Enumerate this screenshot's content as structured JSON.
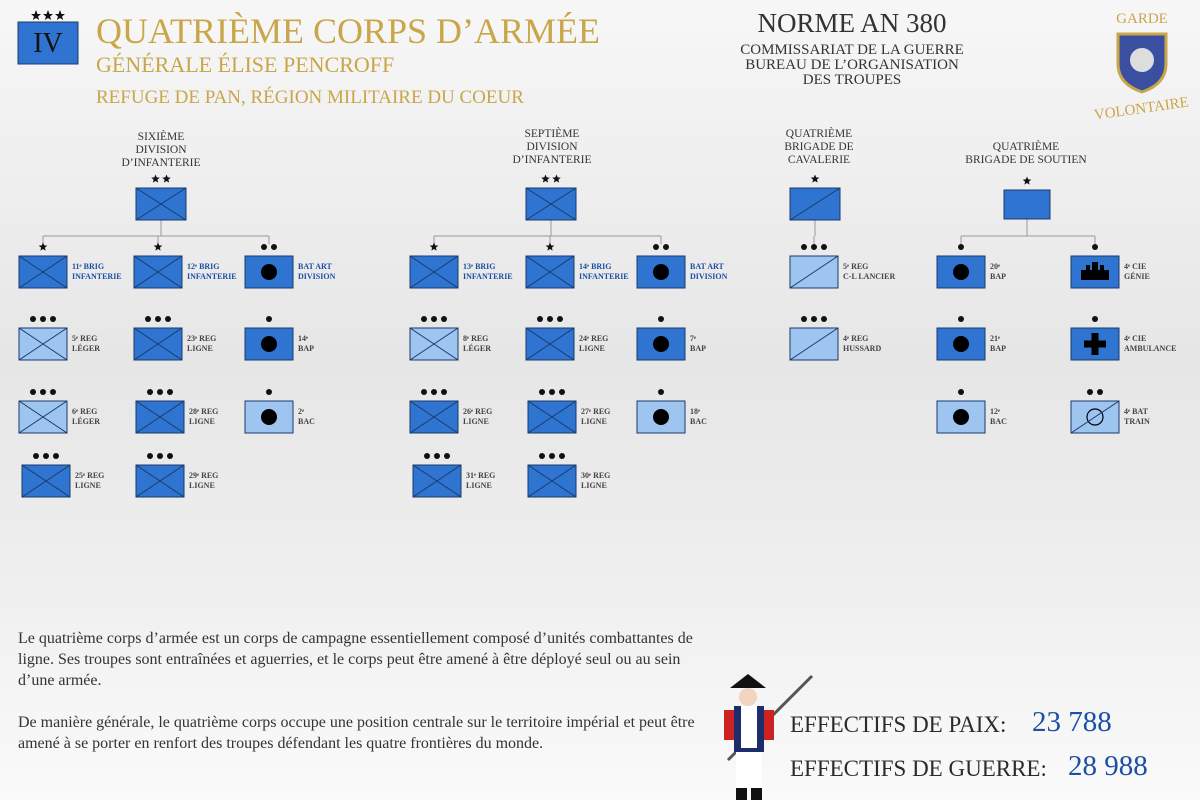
{
  "header": {
    "badge": "IV",
    "title": "QUATRIÈME CORPS D’ARMÉE",
    "commander": "GÉNÉRALE ÉLISE PENCROFF",
    "location": "REFUGE DE PAN, RÉGION MILITAIRE DU COEUR"
  },
  "norm": {
    "title": "NORME AN 380",
    "lines": [
      "COMMISSARIAT DE LA GUERRE",
      "BUREAU DE L’ORGANISATION",
      "DES TROUPES"
    ]
  },
  "logo": {
    "top": "GARDE",
    "bottom": "VOLONTAIRE"
  },
  "formations": [
    {
      "label": [
        "SIXIÈME",
        "DIVISION",
        "D’INFANTERIE"
      ],
      "units": [
        {
          "label": [
            "11ᵉ BRIG",
            "INFANTERIE"
          ]
        },
        {
          "label": [
            "5ᵉ REG",
            "LÉGER"
          ]
        },
        {
          "label": [
            "6ᵉ REG",
            "LÉGER"
          ]
        },
        {
          "label": [
            "25ᵉ REG",
            "LIGNE"
          ]
        },
        {
          "label": [
            "12ᵉ BRIG",
            "INFANTERIE"
          ]
        },
        {
          "label": [
            "23ᵉ REG",
            "LIGNE"
          ]
        },
        {
          "label": [
            "28ᵉ REG",
            "LIGNE"
          ]
        },
        {
          "label": [
            "29ᵉ REG",
            "LIGNE"
          ]
        },
        {
          "label": [
            "BAT ART",
            "DIVISION"
          ]
        },
        {
          "label": [
            "14ᵉ",
            "BAP"
          ]
        },
        {
          "label": [
            "2ᵉ",
            "BAC"
          ]
        }
      ]
    },
    {
      "label": [
        "SEPTIÈME",
        "DIVISION",
        "D’INFANTERIE"
      ],
      "units": [
        {
          "label": [
            "13ᵉ BRIG",
            "INFANTERIE"
          ]
        },
        {
          "label": [
            "8ᵉ REG",
            "LÉGER"
          ]
        },
        {
          "label": [
            "26ᵉ REG",
            "LIGNE"
          ]
        },
        {
          "label": [
            "31ᵉ REG",
            "LIGNE"
          ]
        },
        {
          "label": [
            "14ᵉ BRIG",
            "INFANTERIE"
          ]
        },
        {
          "label": [
            "24ᵉ REG",
            "LIGNE"
          ]
        },
        {
          "label": [
            "27ᵉ REG",
            "LIGNE"
          ]
        },
        {
          "label": [
            "30ᵉ REG",
            "LIGNE"
          ]
        },
        {
          "label": [
            "BAT ART",
            "DIVISION"
          ]
        },
        {
          "label": [
            "7ᵉ",
            "BAP"
          ]
        },
        {
          "label": [
            "18ᵉ",
            "BAC"
          ]
        }
      ]
    },
    {
      "label": [
        "QUATRIÈME",
        "BRIGADE DE",
        "CAVALERIE"
      ],
      "units": [
        {
          "label": [
            "5ᵉ REG",
            "C-L LANCIER"
          ]
        },
        {
          "label": [
            "4ᵉ REG",
            "HUSSARD"
          ]
        }
      ]
    },
    {
      "label": [
        "QUATRIÈME",
        "BRIGADE DE SOUTIEN"
      ],
      "units": [
        {
          "label": [
            "20ᵉ",
            "BAP"
          ]
        },
        {
          "label": [
            "21ᵉ",
            "BAP"
          ]
        },
        {
          "label": [
            "12ᵉ",
            "BAC"
          ]
        },
        {
          "label": [
            "4ᵉ CIE",
            "GÉNIE"
          ]
        },
        {
          "label": [
            "4ᵉ CIE",
            "AMBULANCE"
          ]
        },
        {
          "label": [
            "4ᵉ BAT",
            "TRAIN"
          ]
        }
      ]
    }
  ],
  "footer": {
    "paragraphs": [
      "Le quatrième corps d’armée est un corps de campagne essentiellement composé d’unités combattantes de ligne. Ses troupes sont entraînées et aguerries, et le corps peut être amené à être déployé seul ou au sein d’une armée.",
      "De manière générale, le quatrième corps occupe une position centrale sur le territoire impérial et peut être amené à se porter en renfort des troupes défendant les quatre frontières du monde."
    ],
    "stats": [
      {
        "label": "EFFECTIFS DE PAIX:",
        "value": "23 788"
      },
      {
        "label": "EFFECTIFS DE GUERRE:",
        "value": "28 988"
      }
    ]
  }
}
